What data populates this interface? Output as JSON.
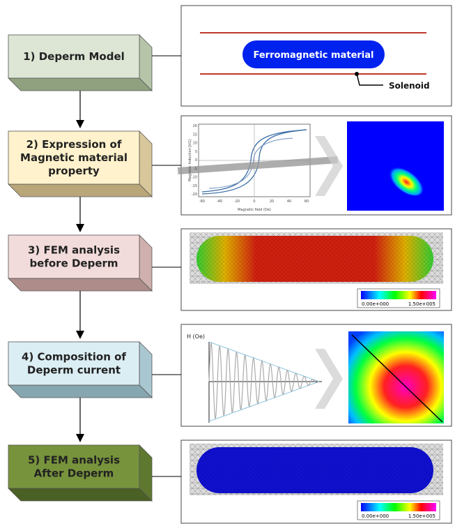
{
  "steps": [
    {
      "label": [
        "1) Deperm Model"
      ]
    },
    {
      "label": [
        "2) Expression of",
        "Magnetic material",
        "property"
      ]
    },
    {
      "label": [
        "3) FEM analysis",
        "before Deperm"
      ]
    },
    {
      "label": [
        "4) Composition of",
        "Deperm current"
      ]
    },
    {
      "label": [
        "5) FEM analysis",
        "After Deperm"
      ]
    }
  ],
  "model": {
    "material": "Ferromagnetic material",
    "solenoid": "Solenoid"
  },
  "hysteresis": {
    "xlabel": "Magnetic field (Oe)",
    "ylabel": "Magnetic Induction [kG]",
    "xticks": [
      "-60",
      "-40",
      "-20",
      "0",
      "20",
      "40",
      "60"
    ],
    "yticks": [
      "20",
      "15",
      "10",
      "5",
      "0",
      "-5",
      "-10",
      "-15",
      "-20"
    ]
  },
  "current": {
    "ylabel": "H (Oe)"
  },
  "colorbar_before": {
    "min": "0.00e+000",
    "max": "1.50e+005"
  },
  "colorbar_after": {
    "min": "0.00e+000",
    "max": "1.50e+005"
  }
}
